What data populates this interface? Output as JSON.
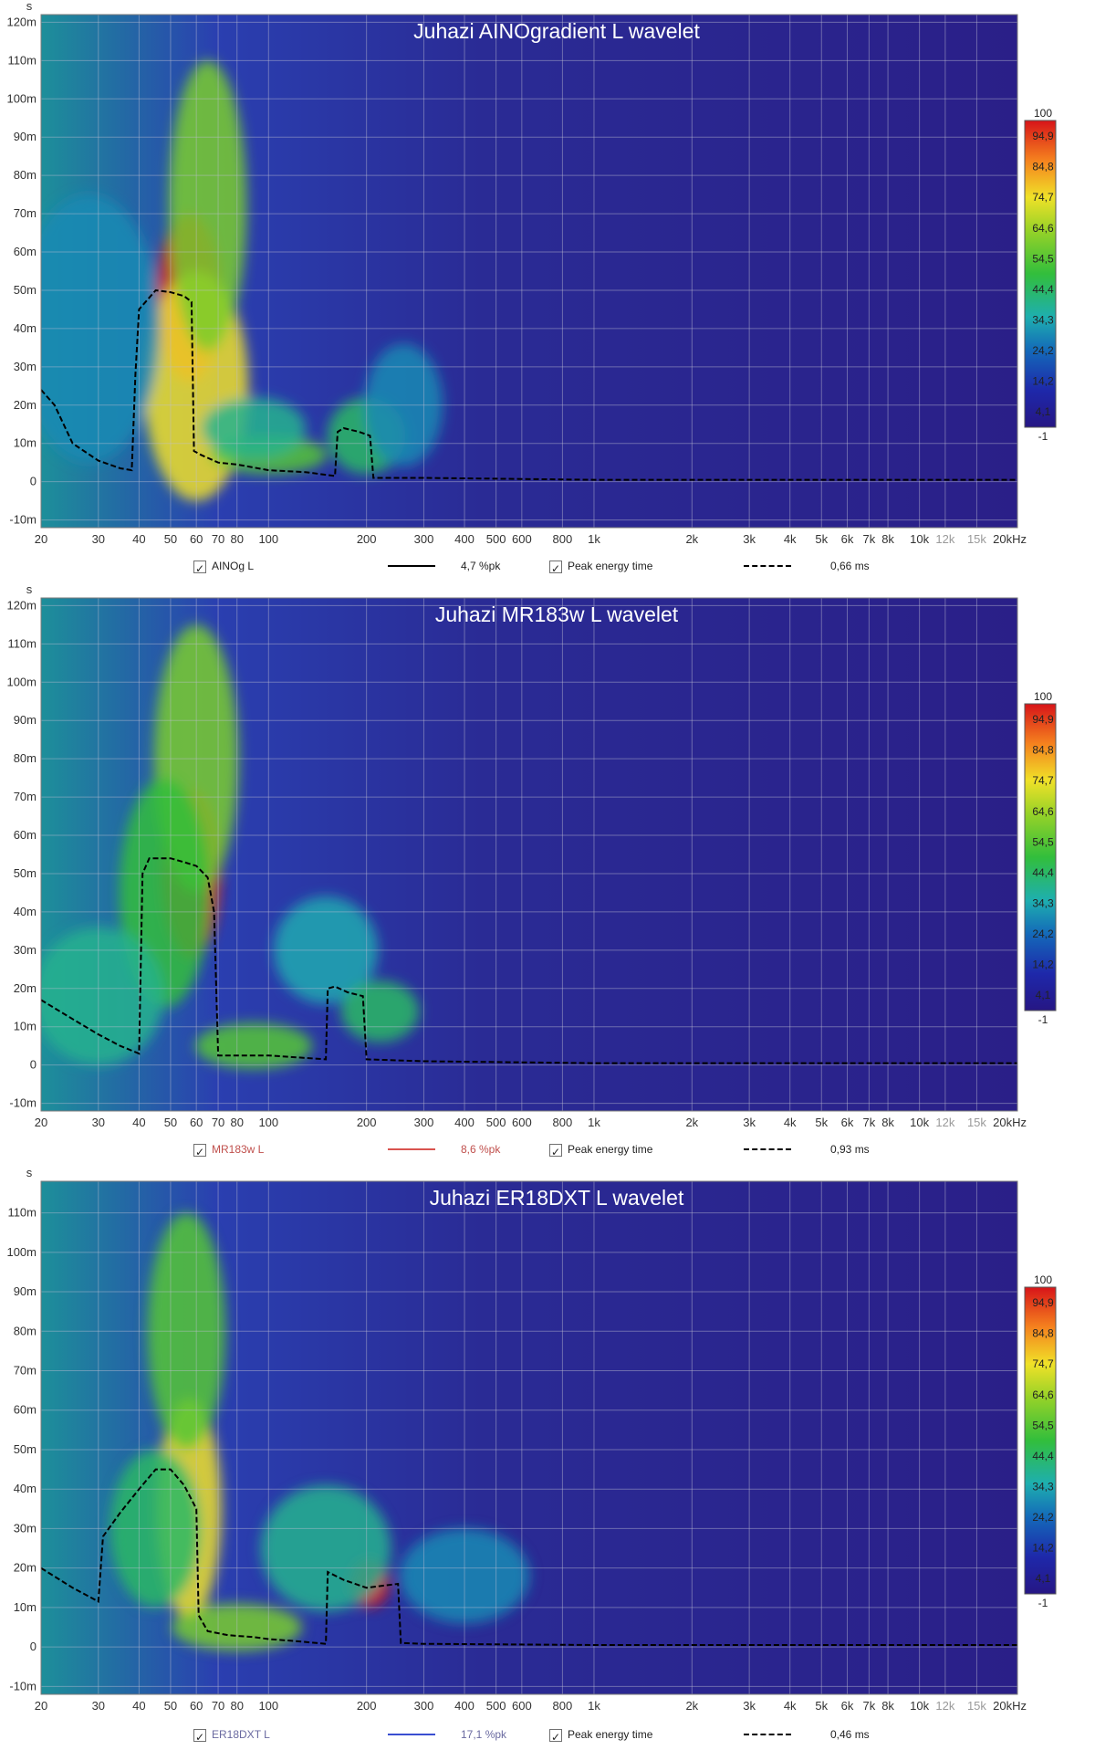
{
  "charts": [
    {
      "title": "Juhazi AINOgradient L wavelet",
      "y_unit": "s",
      "colorbar_labels": [
        "100",
        "94,9",
        "84,8",
        "74,7",
        "64,6",
        "54,5",
        "44,4",
        "34,3",
        "24,2",
        "14,2",
        "4,1",
        "-1"
      ],
      "legend": {
        "trace_label": "AINOg L",
        "trace_color": "#000000",
        "trace_value": "4,7 %pk",
        "peak_label": "Peak energy time",
        "peak_value": "0,66 ms"
      }
    },
    {
      "title": "Juhazi MR183w L wavelet",
      "y_unit": "s",
      "colorbar_labels": [
        "100",
        "94,9",
        "84,8",
        "74,7",
        "64,6",
        "54,5",
        "44,4",
        "34,3",
        "24,2",
        "14,2",
        "4,1",
        "-1"
      ],
      "legend": {
        "trace_label": "MR183w L",
        "trace_color": "#d9534f",
        "trace_value": "8,6 %pk",
        "peak_label": "Peak energy time",
        "peak_value": "0,93 ms"
      }
    },
    {
      "title": "Juhazi ER18DXT L wavelet",
      "y_unit": "s",
      "colorbar_labels": [
        "100",
        "94,9",
        "84,8",
        "74,7",
        "64,6",
        "54,5",
        "44,4",
        "34,3",
        "24,2",
        "14,2",
        "4,1",
        "-1"
      ],
      "legend": {
        "trace_label": "ER18DXT L",
        "trace_color": "#3a4fd1",
        "trace_value": "17,1 %pk",
        "peak_label": "Peak energy time",
        "peak_value": "0,46 ms"
      }
    }
  ],
  "chart_data": [
    {
      "type": "heatmap",
      "title": "Juhazi AINOgradient L wavelet",
      "x_scale": "log",
      "xlim": [
        20,
        20000
      ],
      "ylim": [
        -12,
        122
      ],
      "x_ticks": [
        "20",
        "30",
        "40",
        "50",
        "60",
        "70",
        "80",
        "100",
        "200",
        "300",
        "400",
        "500",
        "600",
        "800",
        "1k",
        "2k",
        "3k",
        "4k",
        "5k",
        "6k",
        "7k",
        "8k",
        "10k",
        "12k",
        "15k",
        "20kHz"
      ],
      "y_ticks": [
        "120m",
        "110m",
        "100m",
        "90m",
        "80m",
        "70m",
        "60m",
        "50m",
        "40m",
        "30m",
        "20m",
        "10m",
        "0",
        "-10m"
      ],
      "colorbar_range": [
        -1,
        100
      ],
      "hotspots": [
        {
          "f": 57,
          "t": 48,
          "level": 100,
          "sf": 0.1,
          "st": 22
        },
        {
          "f": 60,
          "t": 25,
          "level": 75,
          "sf": 0.16,
          "st": 30
        },
        {
          "f": 65,
          "t": 72,
          "level": 60,
          "sf": 0.12,
          "st": 38
        },
        {
          "f": 100,
          "t": 7,
          "level": 55,
          "sf": 0.18,
          "st": 5
        },
        {
          "f": 90,
          "t": 14,
          "level": 40,
          "sf": 0.16,
          "st": 8
        },
        {
          "f": 28,
          "t": 40,
          "level": 30,
          "sf": 0.22,
          "st": 35
        },
        {
          "f": 200,
          "t": 12,
          "level": 45,
          "sf": 0.12,
          "st": 10
        },
        {
          "f": 260,
          "t": 20,
          "level": 30,
          "sf": 0.12,
          "st": 16
        }
      ],
      "peak_energy_time": {
        "f": [
          20,
          22,
          25,
          30,
          35,
          38,
          39,
          40,
          45,
          50,
          55,
          58,
          59,
          62,
          70,
          80,
          100,
          130,
          160,
          163,
          170,
          190,
          205,
          210,
          300,
          1000,
          5000,
          20000
        ],
        "t": [
          24,
          20,
          10,
          5.5,
          3.5,
          3,
          28,
          45,
          50,
          49.5,
          48.5,
          47,
          8,
          7,
          5,
          4.5,
          3,
          2.5,
          1.5,
          13,
          14,
          13,
          12,
          1,
          1,
          0.5,
          0.5,
          0.5
        ]
      }
    },
    {
      "type": "heatmap",
      "title": "Juhazi MR183w L wavelet",
      "x_scale": "log",
      "xlim": [
        20,
        20000
      ],
      "ylim": [
        -12,
        122
      ],
      "x_ticks": [
        "20",
        "30",
        "40",
        "50",
        "60",
        "70",
        "80",
        "100",
        "200",
        "300",
        "400",
        "500",
        "600",
        "800",
        "1k",
        "2k",
        "3k",
        "4k",
        "5k",
        "6k",
        "7k",
        "8k",
        "10k",
        "12k",
        "15k",
        "20kHz"
      ],
      "y_ticks": [
        "120m",
        "110m",
        "100m",
        "90m",
        "80m",
        "70m",
        "60m",
        "50m",
        "40m",
        "30m",
        "20m",
        "10m",
        "0",
        "-10m"
      ],
      "colorbar_range": [
        -1,
        100
      ],
      "hotspots": [
        {
          "f": 58,
          "t": 50,
          "level": 100,
          "sf": 0.09,
          "st": 22
        },
        {
          "f": 60,
          "t": 80,
          "level": 60,
          "sf": 0.13,
          "st": 35
        },
        {
          "f": 48,
          "t": 45,
          "level": 50,
          "sf": 0.14,
          "st": 30
        },
        {
          "f": 30,
          "t": 18,
          "level": 40,
          "sf": 0.2,
          "st": 18
        },
        {
          "f": 90,
          "t": 5,
          "level": 55,
          "sf": 0.18,
          "st": 6
        },
        {
          "f": 150,
          "t": 30,
          "level": 35,
          "sf": 0.16,
          "st": 14
        },
        {
          "f": 220,
          "t": 14,
          "level": 45,
          "sf": 0.12,
          "st": 8
        }
      ],
      "peak_energy_time": {
        "f": [
          20,
          25,
          30,
          35,
          40,
          41,
          43,
          50,
          55,
          60,
          65,
          68,
          70,
          72,
          100,
          150,
          152,
          160,
          175,
          195,
          200,
          300,
          1000,
          5000,
          20000
        ],
        "t": [
          17,
          12,
          8,
          5,
          3,
          50,
          54,
          54,
          53,
          52,
          49,
          40,
          2.5,
          2.5,
          2.5,
          1.5,
          20,
          20.5,
          19,
          18,
          1.5,
          1,
          0.5,
          0.5,
          0.5
        ]
      }
    },
    {
      "type": "heatmap",
      "title": "Juhazi ER18DXT L wavelet",
      "x_scale": "log",
      "xlim": [
        20,
        20000
      ],
      "ylim": [
        -12,
        118
      ],
      "x_ticks": [
        "20",
        "30",
        "40",
        "50",
        "60",
        "70",
        "80",
        "100",
        "200",
        "300",
        "400",
        "500",
        "600",
        "800",
        "1k",
        "2k",
        "3k",
        "4k",
        "5k",
        "6k",
        "7k",
        "8k",
        "10k",
        "12k",
        "15k",
        "20kHz"
      ],
      "y_ticks": [
        "110m",
        "100m",
        "90m",
        "80m",
        "70m",
        "60m",
        "50m",
        "40m",
        "30m",
        "20m",
        "10m",
        "0",
        "-10m"
      ],
      "colorbar_range": [
        -1,
        100
      ],
      "hotspots": [
        {
          "f": 205,
          "t": 16,
          "level": 100,
          "sf": 0.06,
          "st": 6
        },
        {
          "f": 57,
          "t": 35,
          "level": 75,
          "sf": 0.1,
          "st": 28
        },
        {
          "f": 56,
          "t": 80,
          "level": 55,
          "sf": 0.12,
          "st": 30
        },
        {
          "f": 45,
          "t": 30,
          "level": 45,
          "sf": 0.14,
          "st": 20
        },
        {
          "f": 80,
          "t": 5,
          "level": 60,
          "sf": 0.2,
          "st": 6
        },
        {
          "f": 150,
          "t": 25,
          "level": 40,
          "sf": 0.2,
          "st": 16
        },
        {
          "f": 400,
          "t": 18,
          "level": 30,
          "sf": 0.2,
          "st": 12
        }
      ],
      "peak_energy_time": {
        "f": [
          20,
          25,
          30,
          31,
          35,
          40,
          45,
          50,
          55,
          60,
          61,
          65,
          75,
          90,
          100,
          120,
          150,
          152,
          170,
          200,
          250,
          255,
          300,
          1000,
          5000,
          20000
        ],
        "t": [
          20,
          15,
          11.5,
          28,
          34,
          40,
          45,
          45,
          41,
          35,
          8,
          4,
          3,
          2.5,
          2,
          1.5,
          0.8,
          19,
          17,
          15,
          16,
          1,
          0.8,
          0.5,
          0.5,
          0.5
        ]
      }
    }
  ]
}
